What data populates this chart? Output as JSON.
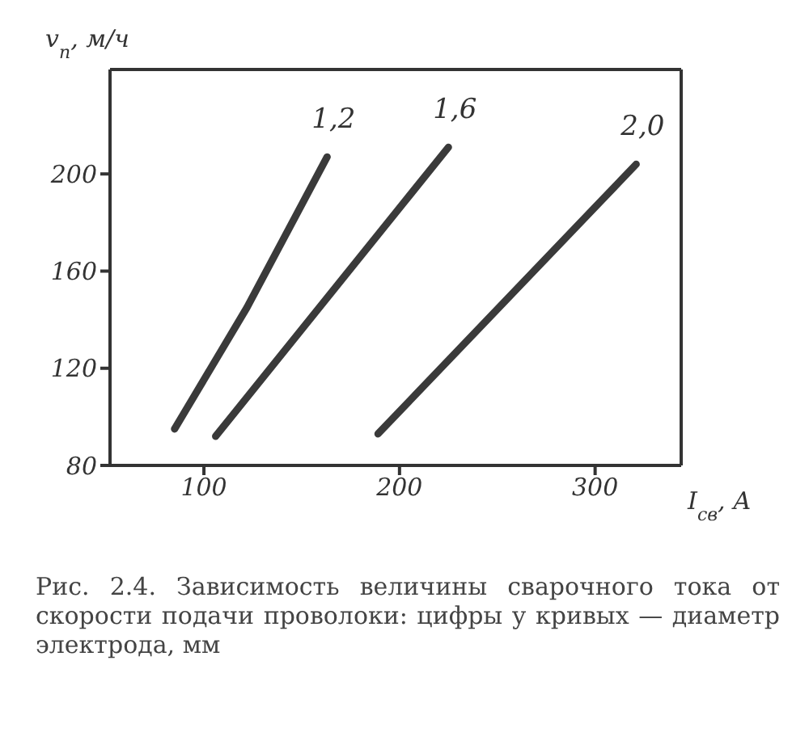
{
  "chart_data": {
    "type": "line",
    "xlabel": "I$_{св}$, А",
    "ylabel": "v$_{п}$, м/ч",
    "annotations": [
      "Рис. 2.4. Зависимость величины сварочного тока от скорости подачи проволоки: цифры у кривых — диаметр электрода, мм"
    ],
    "series": [
      {
        "name": "1,2",
        "color": "#3a3a3a",
        "x": [
          85,
          122,
          163
        ],
        "values": [
          95,
          145,
          207
        ]
      },
      {
        "name": "1,6",
        "color": "#3a3a3a",
        "x": [
          106,
          225
        ],
        "values": [
          92,
          211
        ]
      },
      {
        "name": "2,0",
        "color": "#3a3a3a",
        "x": [
          189,
          321
        ],
        "values": [
          93,
          204
        ]
      }
    ],
    "xlim": [
      52,
      344
    ],
    "xticks": [
      100,
      200,
      300
    ],
    "ylim": [
      80,
      243
    ],
    "yticks": [
      80,
      120,
      160,
      200
    ],
    "marker": "none",
    "line_style": "solid"
  }
}
